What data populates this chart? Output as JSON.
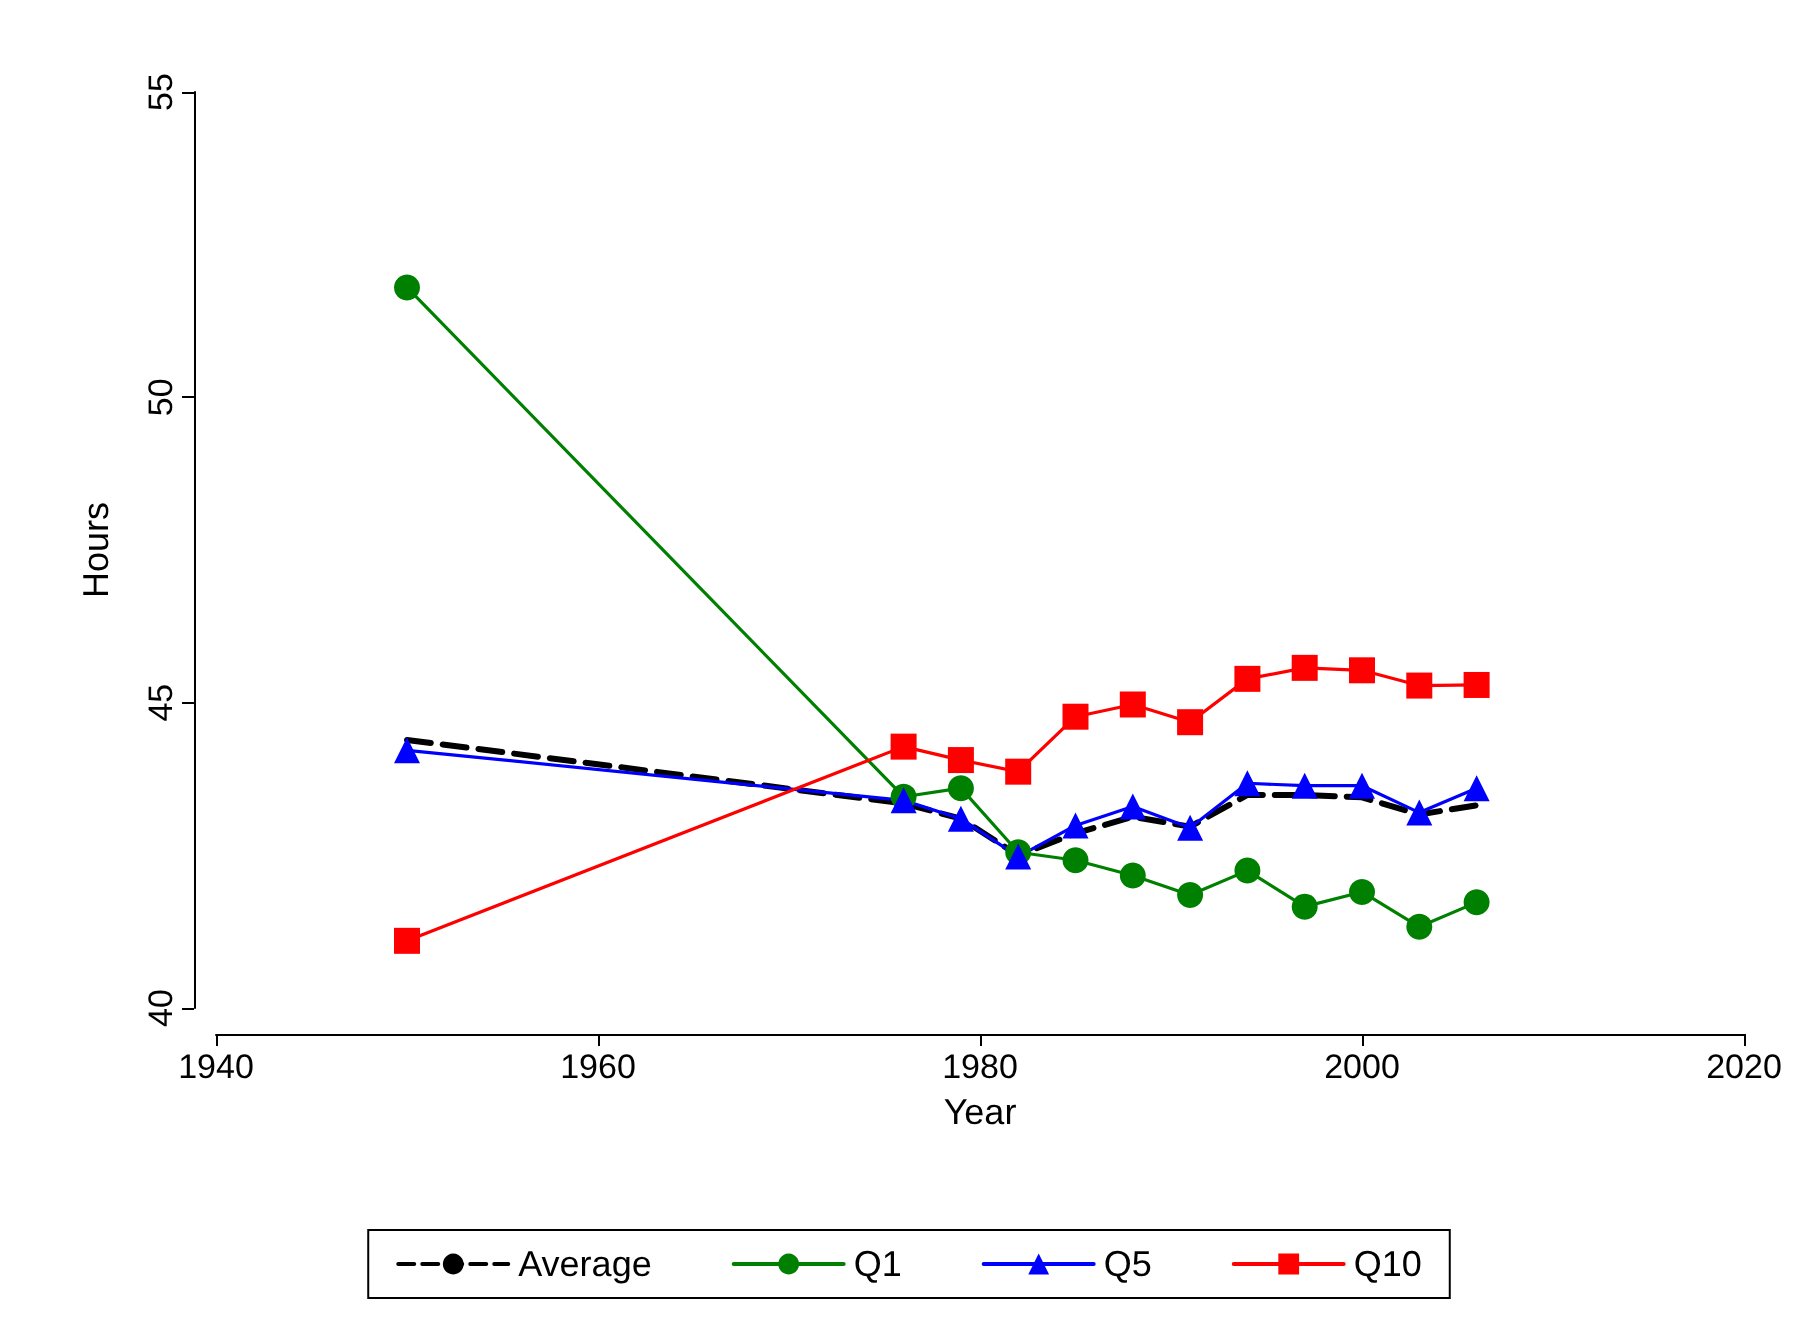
{
  "chart_data": {
    "type": "line",
    "xlabel": "Year",
    "ylabel": "Hours",
    "x": [
      1950,
      1976,
      1979,
      1982,
      1985,
      1988,
      1991,
      1994,
      1997,
      2000,
      2003,
      2006
    ],
    "xlim": [
      1940,
      2020
    ],
    "xticks": [
      1940,
      1960,
      1980,
      2000,
      2020
    ],
    "ylim": [
      40,
      55
    ],
    "yticks": [
      40,
      45,
      50,
      55
    ],
    "grid": false,
    "legend": "bottom",
    "series": [
      {
        "name": "Average",
        "color": "#000000",
        "marker": "none",
        "line_style": "dashed",
        "values": [
          44.39,
          43.35,
          43.1,
          42.5,
          42.86,
          43.13,
          42.97,
          43.49,
          43.49,
          43.45,
          43.17,
          43.32
        ]
      },
      {
        "name": "Q1",
        "color": "#008000",
        "marker": "circle",
        "line_style": "solid",
        "values": [
          51.8,
          43.46,
          43.6,
          42.55,
          42.42,
          42.17,
          41.85,
          42.25,
          41.66,
          41.9,
          41.33,
          41.73
        ]
      },
      {
        "name": "Q5",
        "color": "#0000ff",
        "marker": "triangle",
        "line_style": "solid",
        "values": [
          44.22,
          43.4,
          43.1,
          42.48,
          42.99,
          43.3,
          42.95,
          43.68,
          43.64,
          43.64,
          43.2,
          43.6
        ]
      },
      {
        "name": "Q10",
        "color": "#ff0000",
        "marker": "square",
        "line_style": "solid",
        "values": [
          41.1,
          44.28,
          44.06,
          43.87,
          44.77,
          44.97,
          44.68,
          45.39,
          45.57,
          45.53,
          45.28,
          45.29
        ]
      }
    ]
  }
}
